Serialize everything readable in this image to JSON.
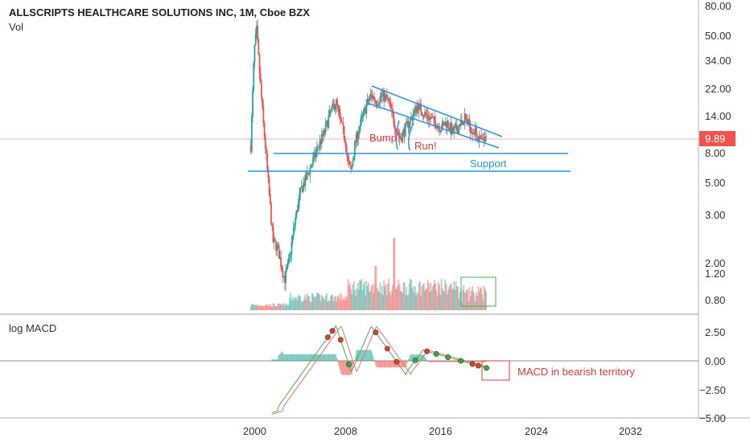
{
  "chart_data": {
    "title": "ALLSCRIPTS HEALTHCARE SOLUTIONS INC, 1M, Cboe BZX",
    "volume_label": "Vol",
    "macd_label": "log MACD",
    "type": "candlestick",
    "price_scale": "log",
    "last_price": "9.89",
    "colors": {
      "up": "#26a69a",
      "down": "#ef5350",
      "trendline": "#2196f3",
      "annotation_red": "#e53935",
      "annotation_teal": "#1aa3c9",
      "box_green": "#4caf50",
      "macd_line": "#4caf50",
      "signal_line": "#e57373"
    },
    "y_ticks": [
      "80.00",
      "50.00",
      "34.00",
      "22.00",
      "14.00",
      "8.00",
      "5.00",
      "3.00",
      "2.00",
      "1.20",
      "0.80"
    ],
    "macd_ticks": [
      "2.50",
      "0.00",
      "−2.50",
      "−5.00"
    ],
    "x_ticks": [
      "2000",
      "2008",
      "2016",
      "2024",
      "2032"
    ],
    "price_path": [
      [
        1999.7,
        9.0
      ],
      [
        2000.0,
        40.0
      ],
      [
        2000.2,
        55.0
      ],
      [
        2000.5,
        25.0
      ],
      [
        2000.8,
        12.0
      ],
      [
        2001.0,
        8.0
      ],
      [
        2001.3,
        4.0
      ],
      [
        2001.6,
        2.0
      ],
      [
        2002.0,
        1.8
      ],
      [
        2002.3,
        1.4
      ],
      [
        2002.6,
        1.1
      ],
      [
        2003.0,
        1.5
      ],
      [
        2003.5,
        2.8
      ],
      [
        2004.0,
        4.5
      ],
      [
        2004.5,
        5.5
      ],
      [
        2005.0,
        7.0
      ],
      [
        2005.5,
        9.0
      ],
      [
        2006.0,
        11.0
      ],
      [
        2006.5,
        15.0
      ],
      [
        2007.0,
        18.0
      ],
      [
        2007.4,
        13.0
      ],
      [
        2007.8,
        10.0
      ],
      [
        2008.0,
        7.0
      ],
      [
        2008.3,
        6.0
      ],
      [
        2008.6,
        9.0
      ],
      [
        2009.0,
        12.0
      ],
      [
        2009.5,
        16.0
      ],
      [
        2010.0,
        20.0
      ],
      [
        2010.5,
        18.0
      ],
      [
        2011.0,
        20.0
      ],
      [
        2011.5,
        18.0
      ],
      [
        2012.0,
        13.0
      ],
      [
        2012.5,
        10.0
      ],
      [
        2013.0,
        12.0
      ],
      [
        2013.5,
        14.0
      ],
      [
        2014.0,
        17.0
      ],
      [
        2014.5,
        15.0
      ],
      [
        2015.0,
        14.0
      ],
      [
        2015.5,
        13.0
      ],
      [
        2016.0,
        12.0
      ],
      [
        2016.5,
        13.0
      ],
      [
        2017.0,
        11.0
      ],
      [
        2017.5,
        12.0
      ],
      [
        2018.0,
        14.0
      ],
      [
        2018.5,
        12.0
      ],
      [
        2019.0,
        11.0
      ],
      [
        2019.5,
        9.5
      ],
      [
        2019.9,
        9.89
      ]
    ],
    "annotations": {
      "bump": "Bump",
      "run": "Run!",
      "support": "Support",
      "macd_note": "MACD in bearish territory"
    }
  }
}
